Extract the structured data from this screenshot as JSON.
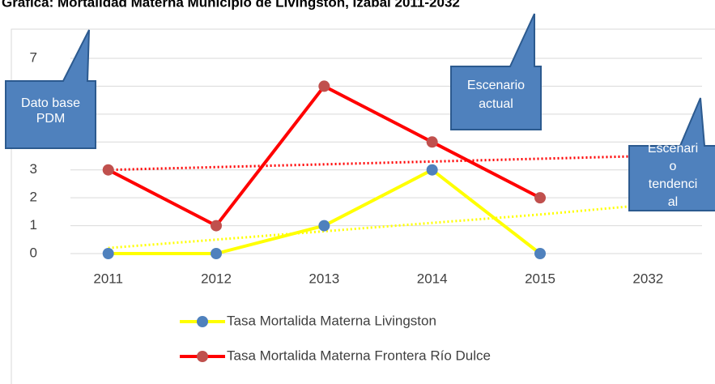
{
  "chart_data": {
    "type": "line",
    "title": "Gráfica: Mortalidad Materna Municipio de Livingston, Izabal 2011-2032",
    "categories": [
      "2011",
      "2012",
      "2013",
      "2014",
      "2015",
      "2032"
    ],
    "series": [
      {
        "name": "Tasa Mortalida Materna Livingston",
        "color": "#ffff00",
        "marker_color": "#4f81bd",
        "values": [
          0,
          0,
          1,
          3,
          0,
          null
        ]
      },
      {
        "name": "Tasa Mortalida Materna Frontera Río Dulce",
        "color": "#ff0000",
        "marker_color": "#c0504d",
        "values": [
          3,
          1,
          6,
          4,
          2,
          null
        ]
      }
    ],
    "trendlines": [
      {
        "color": "#ffff00",
        "values": [
          0.2,
          0.5,
          0.8,
          1.1,
          1.4,
          1.75
        ]
      },
      {
        "color": "#ff0000",
        "values": [
          3.0,
          3.1,
          3.2,
          3.3,
          3.4,
          3.5
        ]
      }
    ],
    "ylim": [
      0,
      7
    ],
    "yticks": [
      0,
      1,
      2,
      3,
      4,
      5,
      6,
      7
    ],
    "grid": true,
    "annotations": [
      {
        "lines": [
          "Dato base",
          "PDM"
        ]
      },
      {
        "lines": [
          "Escenario",
          "actual"
        ]
      },
      {
        "lines": [
          "Escenari",
          "o",
          "tendenci",
          "al"
        ]
      }
    ]
  }
}
